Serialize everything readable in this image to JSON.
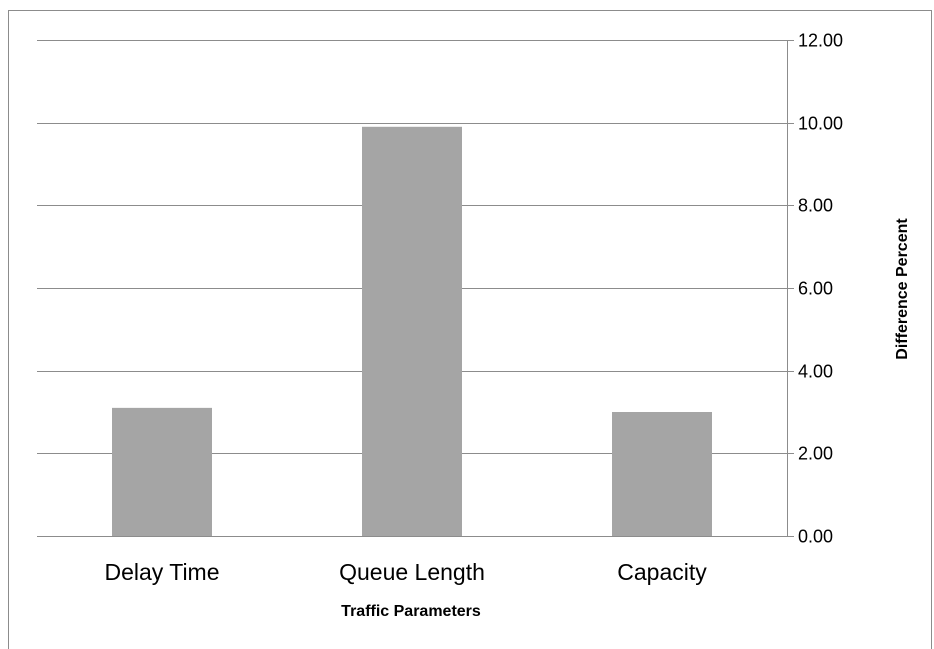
{
  "chart_data": {
    "type": "bar",
    "categories": [
      "Delay Time",
      "Queue Length",
      "Capacity"
    ],
    "values": [
      3.1,
      9.9,
      3.0
    ],
    "xlabel": "Traffic Parameters",
    "ylabel": "Difference Percent",
    "ylim": [
      0,
      12
    ],
    "yticks": [
      "0.00",
      "2.00",
      "4.00",
      "6.00",
      "8.00",
      "10.00",
      "12.00"
    ],
    "y_axis_side": "right",
    "grid": true,
    "legend": "none",
    "bar_color": "#a5a5a5",
    "grid_color": "#8c8c8c"
  }
}
